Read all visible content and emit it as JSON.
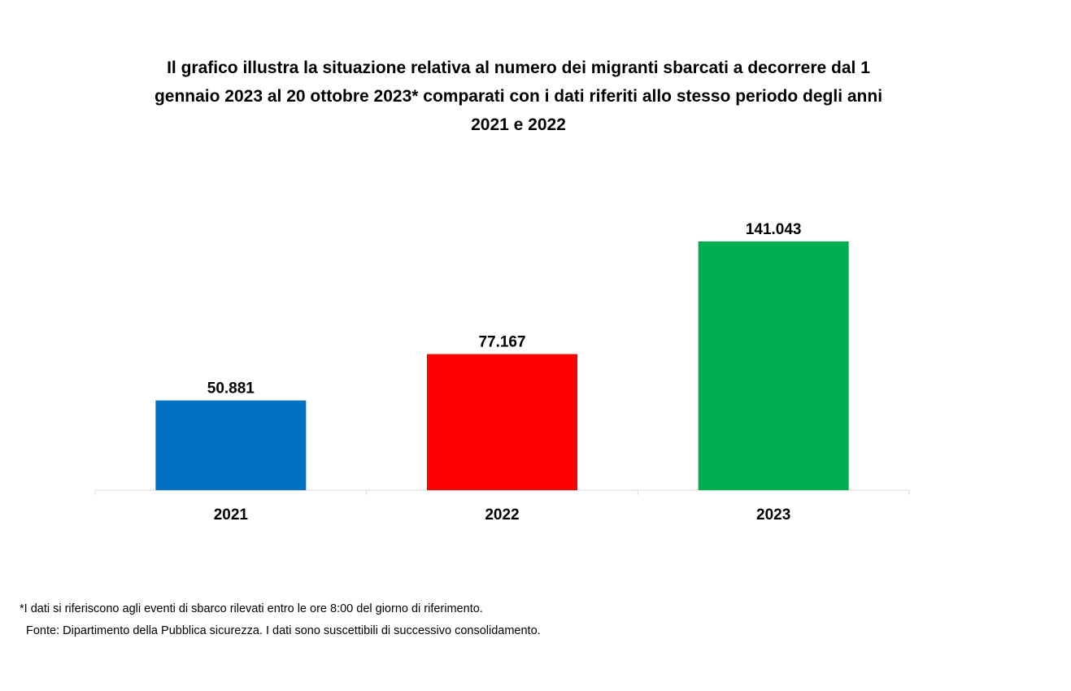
{
  "chart_data": {
    "type": "bar",
    "title_lines": [
      "Il grafico illustra la situazione relativa al numero dei migranti sbarcati a decorrere dal 1",
      "gennaio 2023 al 20 ottobre 2023* comparati con i dati riferiti allo stesso periodo degli anni",
      "2021 e 2022"
    ],
    "categories": [
      "2021",
      "2022",
      "2023"
    ],
    "values": [
      50881,
      77167,
      141043
    ],
    "value_labels": [
      "50.881",
      "77.167",
      "141.043"
    ],
    "colors": [
      "#0070C0",
      "#FF0000",
      "#00B050"
    ],
    "xlabel": "",
    "ylabel": "",
    "ylim": [
      0,
      141043
    ],
    "grid": false,
    "legend": "none"
  },
  "footnote": "*I dati si riferiscono agli eventi di sbarco rilevati entro le ore 8:00 del giorno di riferimento.",
  "source": "Fonte: Dipartimento della Pubblica sicurezza. I dati sono suscettibili di successivo consolidamento."
}
